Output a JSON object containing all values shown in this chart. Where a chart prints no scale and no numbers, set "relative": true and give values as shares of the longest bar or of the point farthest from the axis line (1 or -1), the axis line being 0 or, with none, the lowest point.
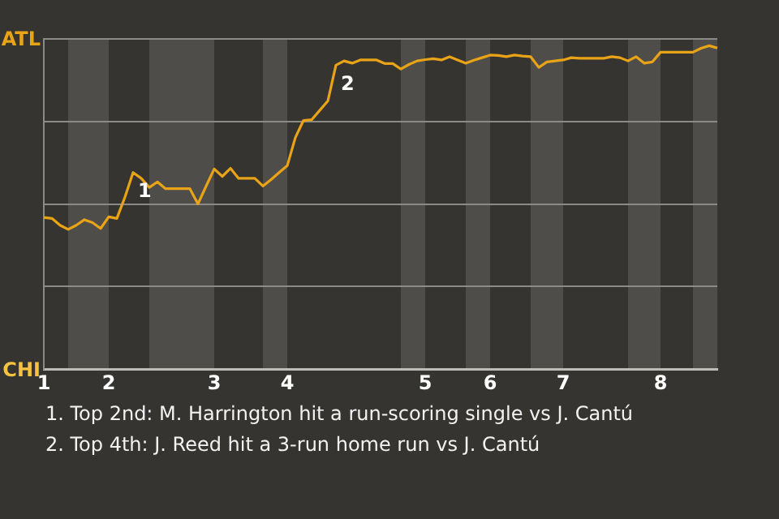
{
  "chart_data": {
    "type": "line",
    "categories": [
      "1",
      null,
      null,
      null,
      null,
      null,
      null,
      null,
      "2",
      null,
      null,
      null,
      null,
      null,
      null,
      null,
      null,
      null,
      null,
      null,
      null,
      "3",
      null,
      null,
      null,
      null,
      null,
      null,
      null,
      null,
      "4",
      null,
      null,
      null,
      null,
      null,
      null,
      null,
      null,
      null,
      null,
      null,
      null,
      null,
      null,
      null,
      null,
      "5",
      null,
      null,
      null,
      null,
      null,
      null,
      null,
      "6",
      null,
      null,
      null,
      null,
      null,
      null,
      null,
      null,
      "7",
      null,
      null,
      null,
      null,
      null,
      null,
      null,
      null,
      null,
      null,
      null,
      "8",
      null,
      null,
      null,
      null,
      null,
      null,
      null
    ],
    "series": [
      {
        "color": "#e8a317",
        "values": [
          0.469,
          0.466,
          0.445,
          0.432,
          0.445,
          0.462,
          0.453,
          0.435,
          0.471,
          0.466,
          0.532,
          0.608,
          0.59,
          0.562,
          0.579,
          0.558,
          0.558,
          0.558,
          0.558,
          0.511,
          0.566,
          0.619,
          0.596,
          0.621,
          0.59,
          0.59,
          0.59,
          0.566,
          0.586,
          0.608,
          0.629,
          0.716,
          0.769,
          0.771,
          0.8,
          0.829,
          0.94,
          0.953,
          0.946,
          0.956,
          0.956,
          0.956,
          0.945,
          0.945,
          0.928,
          0.942,
          0.953,
          0.957,
          0.96,
          0.956,
          0.966,
          0.956,
          0.946,
          0.955,
          0.963,
          0.971,
          0.97,
          0.966,
          0.971,
          0.968,
          0.966,
          0.933,
          0.95,
          0.953,
          0.956,
          0.963,
          0.961,
          0.961,
          0.961,
          0.961,
          0.966,
          0.963,
          0.953,
          0.966,
          0.946,
          0.95,
          0.98,
          0.98,
          0.98,
          0.98,
          0.98,
          0.992,
          1,
          0.993
        ]
      }
    ],
    "relative": true,
    "grid": "y",
    "marker": "none",
    "line_style": "solid",
    "annotations": [
      "ATL",
      "CHI",
      "1",
      "2",
      "1. Top 2nd: M. Harrington hit a run-scoring single vs J. Cantú",
      "2. Top 4th: J. Reed hit a 3-run home run vs J. Cantú"
    ]
  }
}
